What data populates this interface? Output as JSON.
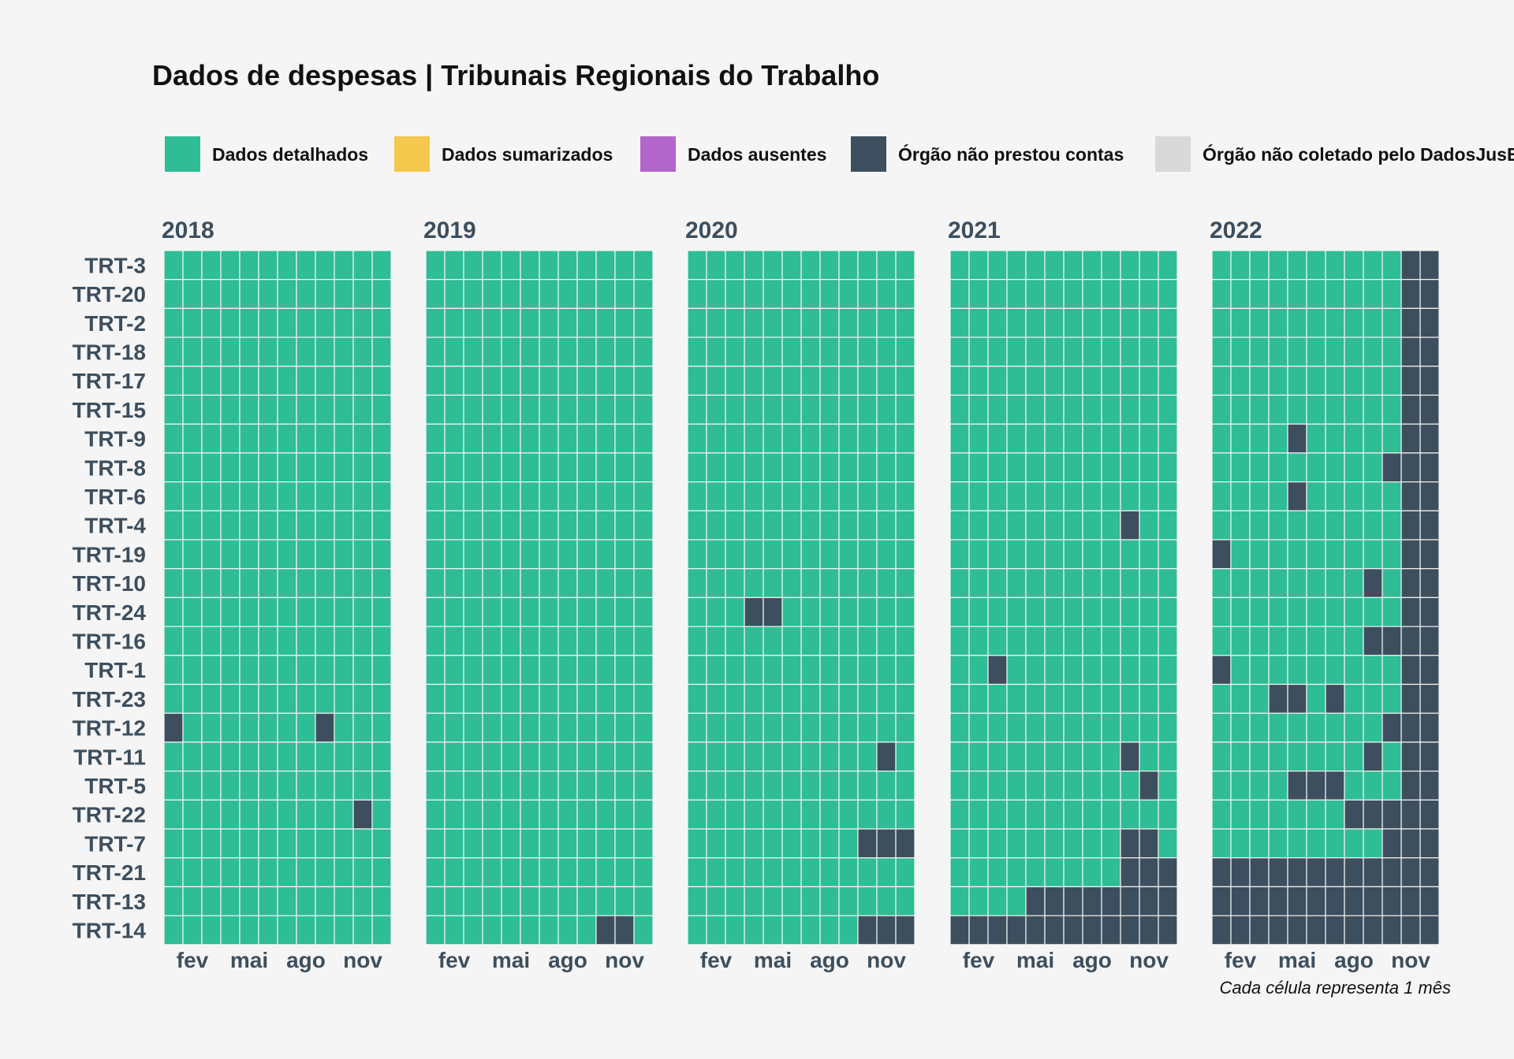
{
  "chart_data": {
    "type": "heatmap",
    "title": "Dados de despesas | Tribunais Regionais do Trabalho",
    "caption": "Cada célula representa 1 mês",
    "legend_position": "top",
    "legend": [
      {
        "key": "detalhados",
        "label": "Dados detalhados",
        "color": "#2ebd95"
      },
      {
        "key": "sumarizados",
        "label": "Dados sumarizados",
        "color": "#f4c84c"
      },
      {
        "key": "ausentes",
        "label": "Dados ausentes",
        "color": "#b366c9"
      },
      {
        "key": "nao_prestou",
        "label": "Órgão não prestou contas",
        "color": "#3d4f5e"
      },
      {
        "key": "nao_coletado",
        "label": "Órgão não coletado pelo DadosJusBr",
        "color": "#d9d9d9"
      }
    ],
    "rows": [
      "TRT-3",
      "TRT-20",
      "TRT-2",
      "TRT-18",
      "TRT-17",
      "TRT-15",
      "TRT-9",
      "TRT-8",
      "TRT-6",
      "TRT-4",
      "TRT-19",
      "TRT-10",
      "TRT-24",
      "TRT-16",
      "TRT-1",
      "TRT-23",
      "TRT-12",
      "TRT-11",
      "TRT-5",
      "TRT-22",
      "TRT-7",
      "TRT-21",
      "TRT-13",
      "TRT-14"
    ],
    "months_per_panel": 12,
    "x_ticks": [
      {
        "month": 2,
        "label": "fev"
      },
      {
        "month": 5,
        "label": "mai"
      },
      {
        "month": 8,
        "label": "ago"
      },
      {
        "month": 11,
        "label": "nov"
      }
    ],
    "default_status": "detalhados",
    "panels": [
      {
        "year": "2018",
        "nao_prestou": {
          "TRT-12": [
            1,
            9
          ],
          "TRT-22": [
            11
          ]
        }
      },
      {
        "year": "2019",
        "nao_prestou": {
          "TRT-14": [
            10,
            11
          ]
        }
      },
      {
        "year": "2020",
        "nao_prestou": {
          "TRT-24": [
            4,
            5
          ],
          "TRT-11": [
            11
          ],
          "TRT-7": [
            10,
            11,
            12
          ],
          "TRT-14": [
            10,
            11,
            12
          ]
        }
      },
      {
        "year": "2021",
        "nao_prestou": {
          "TRT-4": [
            10
          ],
          "TRT-1": [
            3
          ],
          "TRT-11": [
            10
          ],
          "TRT-5": [
            11
          ],
          "TRT-7": [
            10,
            11
          ],
          "TRT-21": [
            10,
            11,
            12
          ],
          "TRT-13": [
            5,
            6,
            7,
            8,
            9,
            10,
            11,
            12
          ],
          "TRT-14": [
            1,
            2,
            3,
            4,
            5,
            6,
            7,
            8,
            9,
            10,
            11,
            12
          ]
        }
      },
      {
        "year": "2022",
        "nao_prestou": {
          "TRT-3": [
            11,
            12
          ],
          "TRT-20": [
            11,
            12
          ],
          "TRT-2": [
            11,
            12
          ],
          "TRT-18": [
            11,
            12
          ],
          "TRT-17": [
            11,
            12
          ],
          "TRT-15": [
            11,
            12
          ],
          "TRT-9": [
            5,
            11,
            12
          ],
          "TRT-8": [
            10,
            11,
            12
          ],
          "TRT-6": [
            5,
            11,
            12
          ],
          "TRT-4": [
            11,
            12
          ],
          "TRT-19": [
            1,
            11,
            12
          ],
          "TRT-10": [
            9,
            11,
            12
          ],
          "TRT-24": [
            11,
            12
          ],
          "TRT-16": [
            9,
            10,
            11,
            12
          ],
          "TRT-1": [
            1,
            11,
            12
          ],
          "TRT-23": [
            4,
            5,
            7,
            11,
            12
          ],
          "TRT-12": [
            10,
            11,
            12
          ],
          "TRT-11": [
            9,
            11,
            12
          ],
          "TRT-5": [
            5,
            6,
            7,
            11,
            12
          ],
          "TRT-22": [
            8,
            9,
            10,
            11,
            12
          ],
          "TRT-7": [
            10,
            11,
            12
          ],
          "TRT-21": [
            1,
            2,
            3,
            4,
            5,
            6,
            7,
            8,
            9,
            10,
            11,
            12
          ],
          "TRT-13": [
            1,
            2,
            3,
            4,
            5,
            6,
            7,
            8,
            9,
            10,
            11,
            12
          ],
          "TRT-14": [
            1,
            2,
            3,
            4,
            5,
            6,
            7,
            8,
            9,
            10,
            11,
            12
          ]
        }
      }
    ]
  }
}
